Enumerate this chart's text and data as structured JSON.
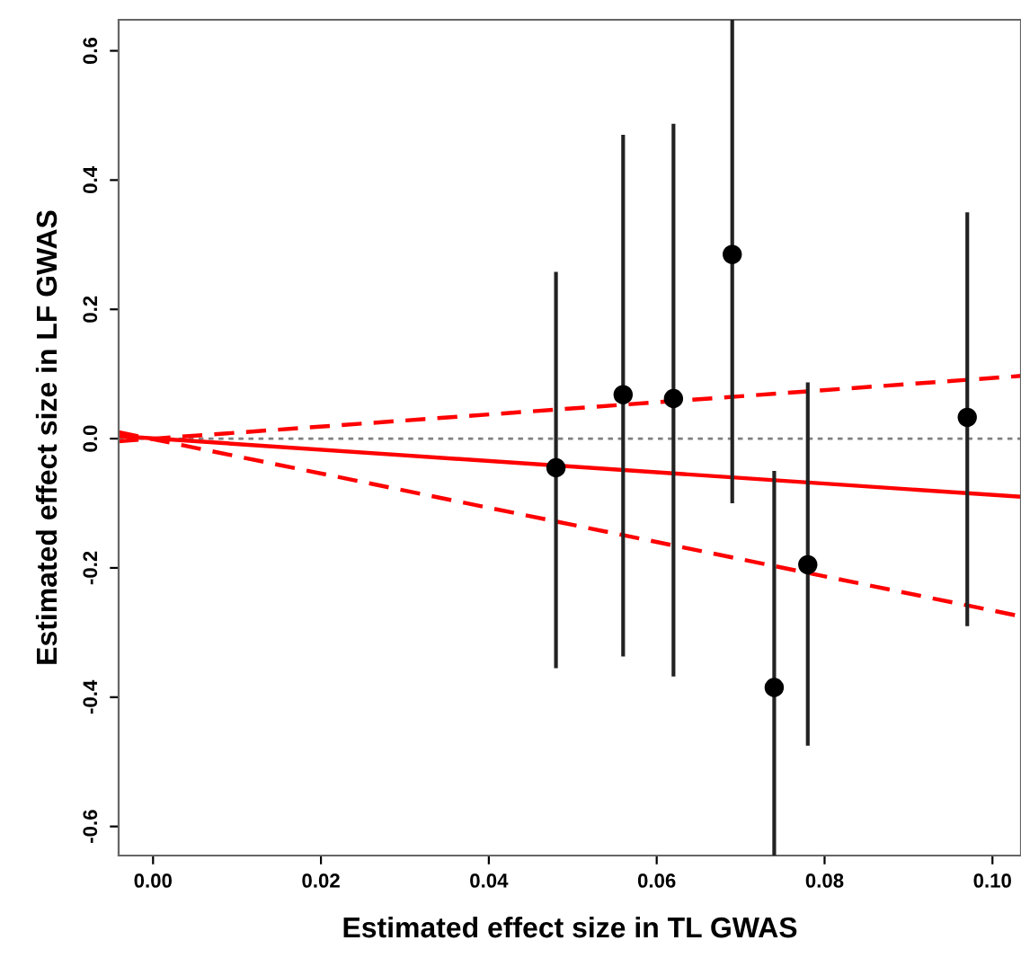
{
  "chart_data": {
    "type": "scatter",
    "xlabel": "Estimated effect size in TL GWAS",
    "ylabel": "Estimated effect size in LF GWAS",
    "xlim": [
      -0.0041,
      0.1034
    ],
    "ylim": [
      -0.645,
      0.648
    ],
    "xticks": [
      {
        "value": 0,
        "label": "0.00"
      },
      {
        "value": 0.02,
        "label": "0.02"
      },
      {
        "value": 0.04,
        "label": "0.04"
      },
      {
        "value": 0.06,
        "label": "0.06"
      },
      {
        "value": 0.08,
        "label": "0.08"
      },
      {
        "value": 0.1,
        "label": "0.10"
      }
    ],
    "yticks": [
      {
        "value": -0.6,
        "label": "-0.6"
      },
      {
        "value": -0.4,
        "label": "-0.4"
      },
      {
        "value": -0.2,
        "label": "-0.2"
      },
      {
        "value": 0,
        "label": "0.0"
      },
      {
        "value": 0.2,
        "label": "0.2"
      },
      {
        "value": 0.4,
        "label": "0.4"
      },
      {
        "value": 0.6,
        "label": "0.6"
      }
    ],
    "grid": false,
    "legend": false,
    "ref_lines": [
      {
        "axis": "y",
        "value": 0,
        "color": "#808080",
        "line_style": "dotted"
      }
    ],
    "series": [
      {
        "color": "#000000",
        "marker": "circle",
        "x": [
          0.048,
          0.056,
          0.062,
          0.069,
          0.074,
          0.078,
          0.097
        ],
        "values": [
          -0.045,
          0.068,
          0.062,
          0.285,
          -0.385,
          -0.195,
          0.033
        ],
        "errors": [
          [
            -0.355,
            0.258
          ],
          [
            -0.337,
            0.47
          ],
          [
            -0.368,
            0.487
          ],
          [
            -0.1,
            0.648
          ],
          [
            -0.645,
            -0.05
          ],
          [
            -0.475,
            0.087
          ],
          [
            -0.29,
            0.35
          ]
        ]
      },
      {
        "type": "line",
        "color": "#ff0000",
        "line_style": "solid",
        "x": [
          -0.0041,
          0.1034
        ],
        "values": [
          0.004,
          -0.09
        ]
      },
      {
        "type": "line",
        "color": "#ff0000",
        "line_style": "dashed",
        "x": [
          -0.0041,
          0.1034
        ],
        "values": [
          -0.004,
          0.097
        ]
      },
      {
        "type": "line",
        "color": "#ff0000",
        "line_style": "dashed",
        "x": [
          -0.0041,
          0.1034
        ],
        "values": [
          0.01,
          -0.275
        ]
      }
    ]
  }
}
